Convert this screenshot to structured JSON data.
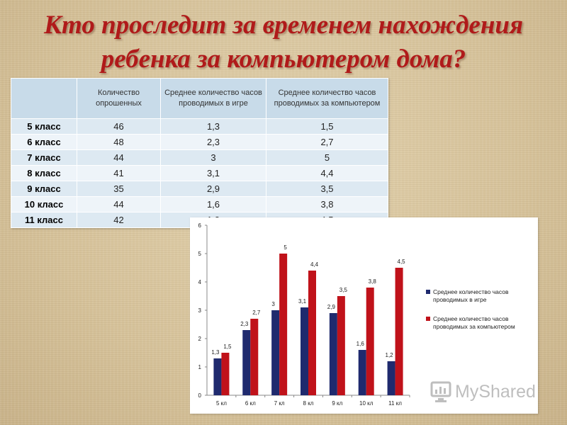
{
  "slide": {
    "title": "Кто проследит за временем нахождения ребенка за компьютером дома?"
  },
  "table": {
    "headers": [
      "",
      "Количество опрошенных",
      "Среднее количество часов проводимых в игре",
      "Среднее количество часов проводимых за компьютером"
    ],
    "rows": [
      [
        "5 класс",
        "46",
        "1,3",
        "1,5"
      ],
      [
        "6 класс",
        "48",
        "2,3",
        "2,7"
      ],
      [
        "7 класс",
        "44",
        "3",
        "5"
      ],
      [
        "8 класс",
        "41",
        "3,1",
        "4,4"
      ],
      [
        "9 класс",
        "35",
        "2,9",
        "3,5"
      ],
      [
        "10 класс",
        "44",
        "1,6",
        "3,8"
      ],
      [
        "11 класс",
        "42",
        "1,2",
        "4,5"
      ]
    ]
  },
  "chart_data": {
    "type": "bar",
    "categories": [
      "5 кл",
      "6 кл",
      "7 кл",
      "8 кл",
      "9 кл",
      "10 кл",
      "11 кл"
    ],
    "series": [
      {
        "name": "Среднее количество часов проводимых в игре",
        "values": [
          1.3,
          2.3,
          3,
          3.1,
          2.9,
          1.6,
          1.2
        ],
        "labels": [
          "1,3",
          "2,3",
          "3",
          "3,1",
          "2,9",
          "1,6",
          "1,2"
        ],
        "color": "#1f2a6e"
      },
      {
        "name": "Среднее количество часов проводимых за компьютером",
        "values": [
          1.5,
          2.7,
          5,
          4.4,
          3.5,
          3.8,
          4.5
        ],
        "labels": [
          "1,5",
          "2,7",
          "5",
          "4,4",
          "3,5",
          "3,8",
          "4,5"
        ],
        "color": "#c0121a"
      }
    ],
    "yticks": [
      "0",
      "1",
      "2",
      "3",
      "4",
      "5",
      "6"
    ],
    "ylim": [
      0,
      6
    ],
    "grid": false,
    "legend": "right"
  },
  "watermark": {
    "text": "MyShared"
  },
  "colors": {
    "title": "#b01a1a",
    "table_header": "#c8dbe9",
    "series_game": "#1f2a6e",
    "series_computer": "#c0121a"
  }
}
